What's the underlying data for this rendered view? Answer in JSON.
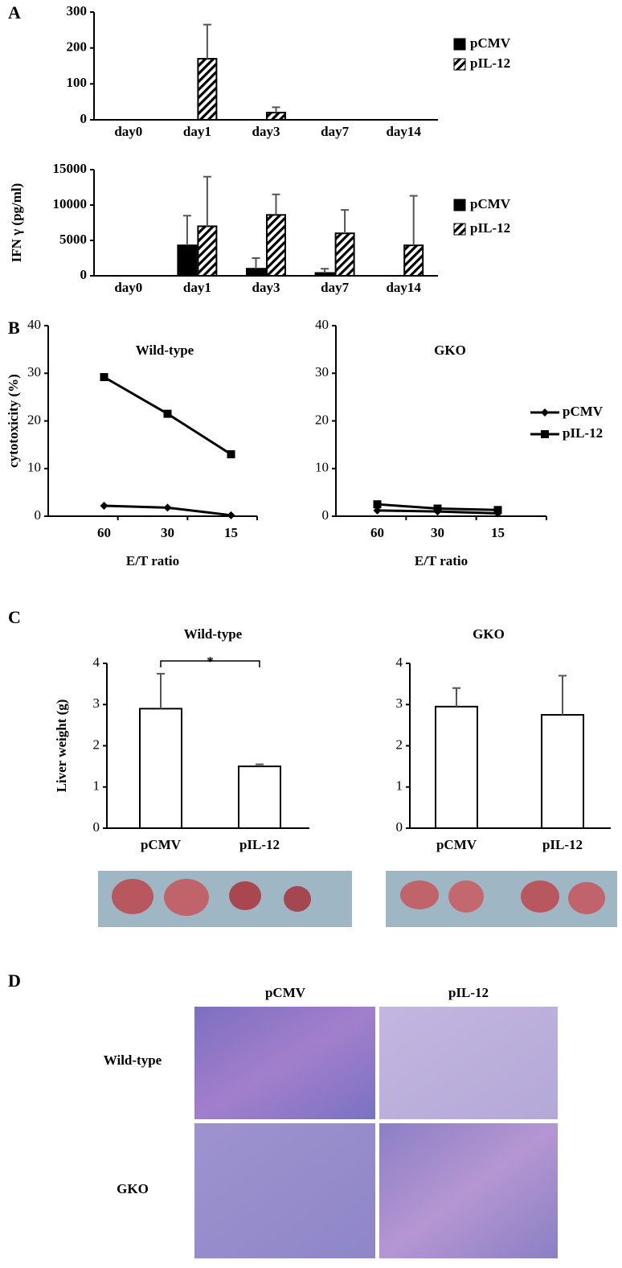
{
  "chart_data": [
    {
      "type": "bar",
      "panel": "A",
      "categories": [
        "day0",
        "day1",
        "day3",
        "day7",
        "day14"
      ],
      "series": [
        {
          "name": "pCMV",
          "color": "#000000",
          "fill": "solid",
          "values": [
            0,
            0,
            0,
            0,
            0
          ],
          "errors": [
            0,
            0,
            0,
            0,
            0
          ]
        },
        {
          "name": "pIL-12",
          "color": "#000000",
          "fill": "hatched",
          "values": [
            0,
            170,
            20,
            0,
            0
          ],
          "errors": [
            0,
            95,
            15,
            0,
            0
          ]
        }
      ],
      "ylim": [
        0,
        300
      ],
      "yticks": [
        0,
        100,
        200,
        300
      ]
    },
    {
      "type": "bar",
      "ylabel": "IFN γ (pg/ml)",
      "categories": [
        "day0",
        "day1",
        "day3",
        "day7",
        "day14"
      ],
      "series": [
        {
          "name": "pCMV",
          "color": "#000000",
          "fill": "solid",
          "values": [
            0,
            4300,
            1000,
            400,
            0
          ],
          "errors": [
            0,
            4200,
            1500,
            600,
            0
          ]
        },
        {
          "name": "pIL-12",
          "color": "#000000",
          "fill": "hatched",
          "values": [
            0,
            7000,
            8600,
            6000,
            4300
          ],
          "errors": [
            0,
            7000,
            2900,
            3300,
            7000
          ]
        }
      ],
      "ylim": [
        0,
        15000
      ],
      "yticks": [
        0,
        5000,
        10000,
        15000
      ]
    },
    {
      "type": "line",
      "panel": "B",
      "title": "Wild-type",
      "xlabel": "E/T ratio",
      "ylabel": "cytotoxicity (%)",
      "categories": [
        "60",
        "30",
        "15"
      ],
      "series": [
        {
          "name": "pCMV",
          "color": "#000000",
          "marker": "diamond",
          "values": [
            2.2,
            1.8,
            0.2
          ]
        },
        {
          "name": "pIL-12",
          "color": "#000000",
          "marker": "square",
          "values": [
            29.2,
            21.5,
            13
          ]
        }
      ],
      "ylim": [
        0,
        40
      ],
      "yticks": [
        0,
        10,
        20,
        30,
        40
      ],
      "legend": true
    },
    {
      "type": "line",
      "title": "GKO",
      "xlabel": "E/T ratio",
      "categories": [
        "60",
        "30",
        "15"
      ],
      "series": [
        {
          "color": "#000000",
          "marker": "diamond",
          "values": [
            1.2,
            1,
            0.6
          ]
        },
        {
          "color": "#000000",
          "marker": "square",
          "values": [
            2.5,
            1.6,
            1.3
          ]
        }
      ],
      "ylim": [
        0,
        40
      ],
      "yticks": [
        0,
        10,
        20,
        30,
        40
      ]
    },
    {
      "type": "bar",
      "panel": "C",
      "title": "Wild-type",
      "ylabel": "Liver weight (g)",
      "categories": [
        "pCMV",
        "pIL-12"
      ],
      "series": [
        {
          "color": "#ffffff",
          "fill": "solid",
          "values": [
            2.9,
            1.5
          ],
          "errors": [
            0.85,
            0.05
          ]
        }
      ],
      "annotation": "*",
      "ylim": [
        0,
        4
      ],
      "yticks": [
        0,
        1,
        2,
        3,
        4
      ]
    },
    {
      "type": "bar",
      "title": "GKO",
      "categories": [
        "pCMV",
        "pIL-12"
      ],
      "series": [
        {
          "color": "#ffffff",
          "fill": "solid",
          "values": [
            2.95,
            2.75
          ],
          "errors": [
            0.45,
            0.95
          ]
        }
      ],
      "ylim": [
        0,
        4
      ],
      "yticks": [
        0,
        1,
        2,
        3,
        4
      ]
    }
  ],
  "panel_d": {
    "label": "D",
    "columns": [
      "pCMV",
      "pIL-12"
    ],
    "rows": [
      "Wild-type",
      "GKO"
    ]
  }
}
